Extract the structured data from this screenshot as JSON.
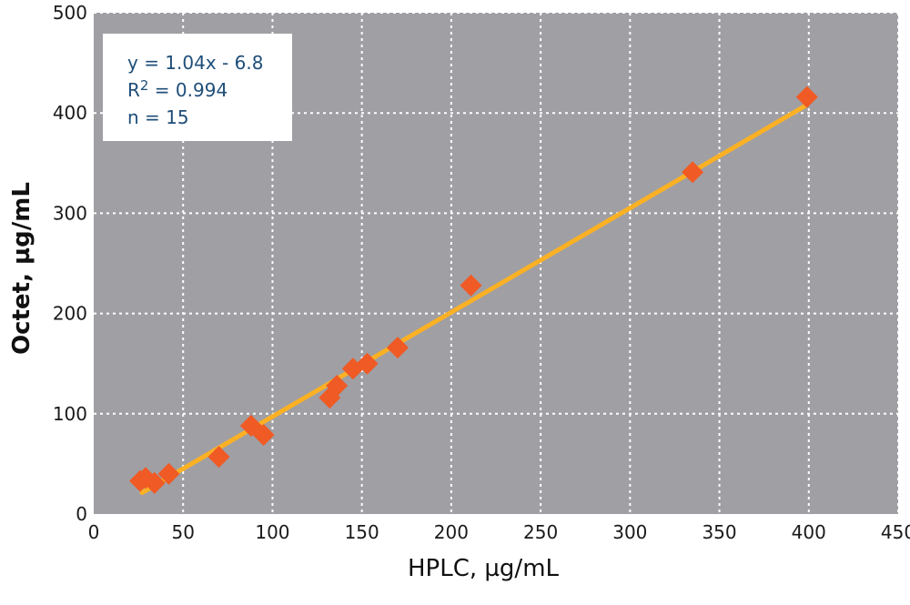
{
  "chart_data": {
    "type": "scatter",
    "title": "",
    "xlabel": "HPLC, µg/mL",
    "ylabel": "Octet, µg/mL",
    "xlim": [
      0,
      450
    ],
    "ylim": [
      0,
      500
    ],
    "xticks": [
      0,
      50,
      100,
      150,
      200,
      250,
      300,
      350,
      400,
      450
    ],
    "yticks": [
      0,
      100,
      200,
      300,
      400,
      500
    ],
    "grid": true,
    "annotations": {
      "equation": "y = 1.04x - 6.8",
      "r2_prefix": "R",
      "r2_sup": "2",
      "r2_value": " = 0.994",
      "n": "n = 15"
    },
    "points": [
      {
        "x": 26,
        "y": 33
      },
      {
        "x": 29,
        "y": 36
      },
      {
        "x": 34,
        "y": 31
      },
      {
        "x": 42,
        "y": 40
      },
      {
        "x": 70,
        "y": 57
      },
      {
        "x": 88,
        "y": 88
      },
      {
        "x": 95,
        "y": 79
      },
      {
        "x": 132,
        "y": 116
      },
      {
        "x": 136,
        "y": 128
      },
      {
        "x": 145,
        "y": 145
      },
      {
        "x": 153,
        "y": 150
      },
      {
        "x": 170,
        "y": 166
      },
      {
        "x": 211,
        "y": 228
      },
      {
        "x": 335,
        "y": 341
      },
      {
        "x": 399,
        "y": 416
      }
    ],
    "trendline": {
      "slope": 1.04,
      "intercept": -6.8,
      "x_start": 27,
      "x_end": 399
    },
    "colors": {
      "plot_background": "#a09fa4",
      "grid": "#ffffff",
      "points": "#f05a24",
      "trendline": "#fbb123",
      "annotation_text": "#1f4e79"
    }
  }
}
